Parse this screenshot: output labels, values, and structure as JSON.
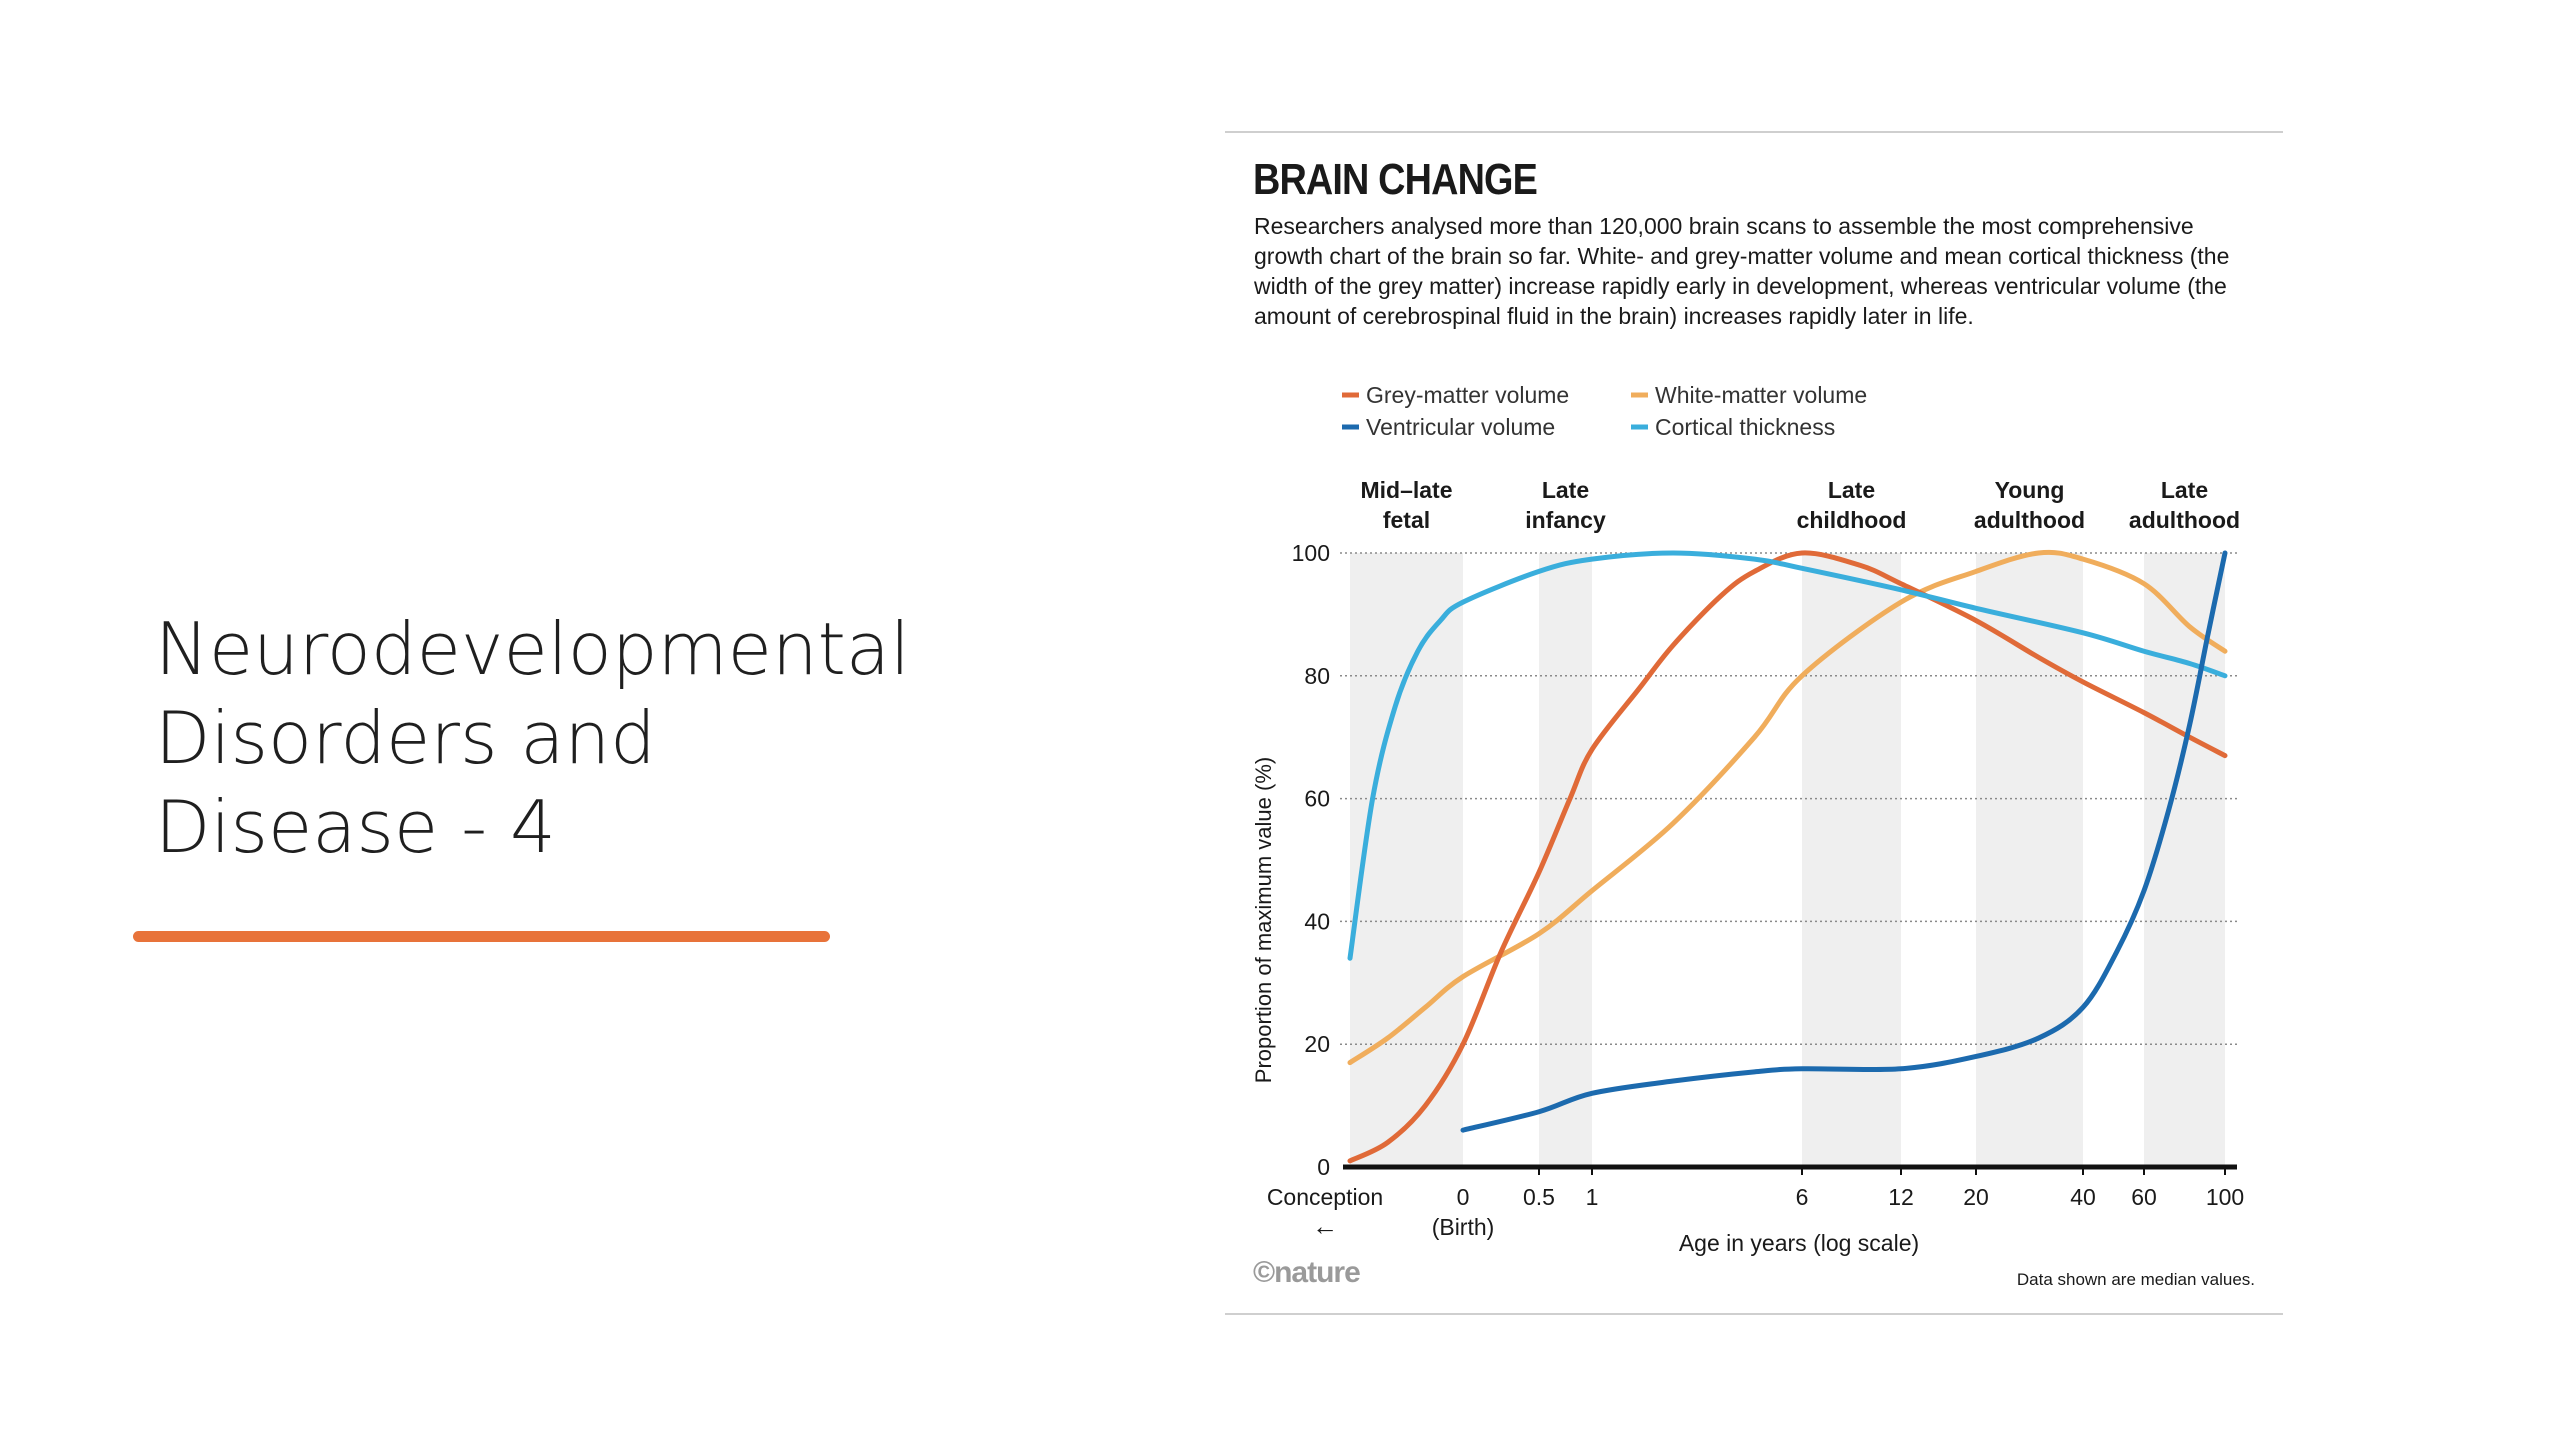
{
  "slide": {
    "title": "Neurodevelopmental\nDisorders and\nDisease - 4",
    "accent_color": "#e8733a"
  },
  "figure": {
    "title": "BRAIN CHANGE",
    "description": "Researchers analysed more than 120,000 brain scans to assemble the most comprehensive growth chart of the brain so far. White- and grey-matter volume and mean cortical thickness (the width of the grey matter) increase rapidly early in development, whereas ventricular volume (the amount of cerebrospinal fluid in the brain) increases rapidly later in life.",
    "credit": "©nature",
    "note": "Data shown are median values."
  },
  "chart_data": {
    "type": "line",
    "title": "BRAIN CHANGE",
    "xlabel": "Age in years (log scale)",
    "ylabel": "Proportion of maximum value (%)",
    "x_scale": "log (with prenatal segment from conception to birth)",
    "x_ticks": [
      {
        "label": "Conception",
        "x": -0.75,
        "sublabel": "←"
      },
      {
        "label": "0",
        "x": 0,
        "sublabel": "(Birth)"
      },
      {
        "label": "0.5",
        "x": 0.5
      },
      {
        "label": "1",
        "x": 1
      },
      {
        "label": "6",
        "x": 6
      },
      {
        "label": "12",
        "x": 12
      },
      {
        "label": "20",
        "x": 20
      },
      {
        "label": "40",
        "x": 40
      },
      {
        "label": "60",
        "x": 60
      },
      {
        "label": "100",
        "x": 100
      }
    ],
    "ylim": [
      0,
      100
    ],
    "y_ticks": [
      0,
      20,
      40,
      60,
      80,
      100
    ],
    "grid": "horizontal dotted",
    "legend_position": "top-left",
    "stages": [
      {
        "label": "Mid–late\nfetal",
        "from": -0.75,
        "to": 0
      },
      {
        "label": "Late\ninfancy",
        "from": 0.5,
        "to": 1
      },
      {
        "label": "Late\nchildhood",
        "from": 6,
        "to": 12
      },
      {
        "label": "Young\nadulthood",
        "from": 20,
        "to": 40
      },
      {
        "label": "Late\nadulthood",
        "from": 60,
        "to": 100
      }
    ],
    "series": [
      {
        "name": "Grey-matter volume",
        "color": "#e06a38",
        "points": [
          [
            -0.75,
            1
          ],
          [
            -0.5,
            4
          ],
          [
            -0.25,
            10
          ],
          [
            0,
            20
          ],
          [
            0.25,
            35
          ],
          [
            0.5,
            48
          ],
          [
            0.75,
            60
          ],
          [
            1,
            68
          ],
          [
            1.5,
            78
          ],
          [
            2,
            85
          ],
          [
            3,
            93
          ],
          [
            4,
            97
          ],
          [
            6,
            100
          ],
          [
            9,
            98
          ],
          [
            12,
            95
          ],
          [
            20,
            89
          ],
          [
            30,
            83
          ],
          [
            40,
            79
          ],
          [
            60,
            74
          ],
          [
            80,
            70
          ],
          [
            100,
            67
          ]
        ]
      },
      {
        "name": "White-matter volume",
        "color": "#f0ad5c",
        "points": [
          [
            -0.75,
            17
          ],
          [
            -0.5,
            21
          ],
          [
            -0.25,
            26
          ],
          [
            0,
            31
          ],
          [
            0.5,
            38
          ],
          [
            1,
            45
          ],
          [
            2,
            56
          ],
          [
            4,
            70
          ],
          [
            6,
            80
          ],
          [
            12,
            92
          ],
          [
            20,
            97
          ],
          [
            30,
            100
          ],
          [
            40,
            99
          ],
          [
            60,
            95
          ],
          [
            80,
            88
          ],
          [
            100,
            84
          ]
        ]
      },
      {
        "name": "Ventricular volume",
        "color": "#1c6aae",
        "points": [
          [
            0,
            6
          ],
          [
            0.5,
            9
          ],
          [
            1,
            12
          ],
          [
            2,
            14
          ],
          [
            4,
            15.5
          ],
          [
            6,
            16
          ],
          [
            12,
            16
          ],
          [
            20,
            18
          ],
          [
            30,
            21
          ],
          [
            40,
            26
          ],
          [
            50,
            35
          ],
          [
            60,
            45
          ],
          [
            70,
            58
          ],
          [
            80,
            72
          ],
          [
            90,
            87
          ],
          [
            100,
            100
          ]
        ]
      },
      {
        "name": "Cortical thickness",
        "color": "#3aaedc",
        "points": [
          [
            -0.75,
            34
          ],
          [
            -0.6,
            60
          ],
          [
            -0.45,
            75
          ],
          [
            -0.3,
            84
          ],
          [
            -0.15,
            89
          ],
          [
            0,
            92
          ],
          [
            0.5,
            97
          ],
          [
            1,
            99
          ],
          [
            2,
            100
          ],
          [
            4,
            99
          ],
          [
            6,
            97.5
          ],
          [
            12,
            94
          ],
          [
            20,
            91
          ],
          [
            40,
            87
          ],
          [
            60,
            84
          ],
          [
            80,
            82
          ],
          [
            100,
            80
          ]
        ]
      }
    ]
  }
}
